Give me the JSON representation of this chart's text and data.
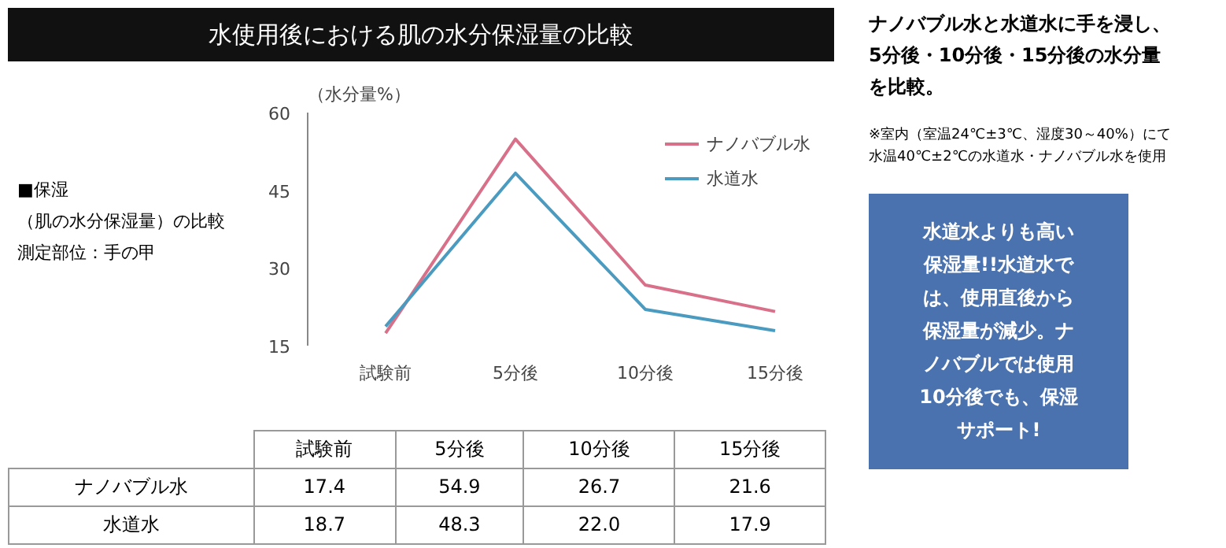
{
  "chart_data": {
    "type": "line",
    "title": "水使用後における肌の水分保湿量の比較",
    "ylabel": "（水分量%）",
    "categories": [
      "試験前",
      "5分後",
      "10分後",
      "15分後"
    ],
    "series": [
      {
        "name": "ナノバブル水",
        "color": "#d9708a",
        "values": [
          17.4,
          54.9,
          26.7,
          21.6
        ],
        "value_labels": [
          "17.4",
          "54.9",
          "26.7",
          "21.6"
        ]
      },
      {
        "name": "水道水",
        "color": "#4a9bbf",
        "values": [
          18.7,
          48.3,
          22.0,
          17.9
        ],
        "value_labels": [
          "18.7",
          "48.3",
          "22.0",
          "17.9"
        ]
      }
    ],
    "ylim": [
      15,
      60
    ],
    "yticks": [
      15,
      30,
      45,
      60
    ],
    "grid": false,
    "legend": "top right",
    "marker": "none",
    "line_style": "solid",
    "annotations": [
      "■保湿",
      "（肌の水分保湿量）の比較",
      "測定部位：手の甲",
      "ナノバブル水と水道水に手を浸し、5分後・10分後・15分後の水分量を比較。",
      "※室内（室温24℃±3℃、湿度30～40%）にて水温40℃±2℃の水道水・ナノバブル水を使用",
      "水道水よりも高い保湿量!!水道水では、使用直後から保湿量が減少。ナノバブルでは使用10分後でも、保湿サポート!"
    ]
  }
}
